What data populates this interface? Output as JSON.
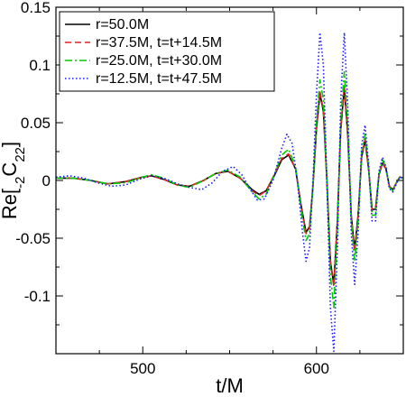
{
  "chart_data": {
    "type": "line",
    "xlabel": "t/M",
    "ylabel": {
      "main": "Re[",
      "pre_sub": "-2",
      "letter": "C",
      "post_sub": "22",
      "close": "]"
    },
    "xlim": [
      450,
      650
    ],
    "ylim": [
      -0.15,
      0.15
    ],
    "x_ticks": [
      500,
      600
    ],
    "x_tick_labels": [
      "500",
      "600"
    ],
    "y_ticks": [
      0.15,
      0.1,
      0.05,
      0,
      -0.05,
      -0.1
    ],
    "y_tick_labels": [
      "0.15",
      "0.1",
      "0.05",
      "0",
      "-0.05",
      "-0.1"
    ],
    "grid": false,
    "legend_position": "top-left",
    "series": [
      {
        "name": "r=50.0M",
        "color": "#000000",
        "dash": "solid",
        "points": [
          [
            450,
            0.002
          ],
          [
            460,
            0.002
          ],
          [
            470,
            0.0
          ],
          [
            480,
            -0.003
          ],
          [
            490,
            -0.001
          ],
          [
            500,
            0.003
          ],
          [
            505,
            0.004
          ],
          [
            512,
            0.001
          ],
          [
            520,
            -0.004
          ],
          [
            527,
            -0.005
          ],
          [
            535,
            0.0
          ],
          [
            542,
            0.006
          ],
          [
            549,
            0.008
          ],
          [
            556,
            0.002
          ],
          [
            563,
            -0.008
          ],
          [
            567,
            -0.012
          ],
          [
            571,
            -0.009
          ],
          [
            576,
            0.005
          ],
          [
            580,
            0.018
          ],
          [
            584,
            0.022
          ],
          [
            588,
            0.01
          ],
          [
            591,
            -0.02
          ],
          [
            594,
            -0.045
          ],
          [
            596,
            -0.04
          ],
          [
            598,
            -0.005
          ],
          [
            600,
            0.045
          ],
          [
            602,
            0.075
          ],
          [
            604,
            0.06
          ],
          [
            606,
            0.0
          ],
          [
            608,
            -0.07
          ],
          [
            610,
            -0.09
          ],
          [
            612,
            -0.035
          ],
          [
            614,
            0.045
          ],
          [
            616,
            0.08
          ],
          [
            618,
            0.04
          ],
          [
            620,
            -0.03
          ],
          [
            622,
            -0.06
          ],
          [
            624,
            -0.03
          ],
          [
            626,
            0.02
          ],
          [
            628,
            0.035
          ],
          [
            630,
            0.01
          ],
          [
            632,
            -0.025
          ],
          [
            634,
            -0.025
          ],
          [
            636,
            0.005
          ],
          [
            638,
            0.015
          ],
          [
            640,
            0.01
          ],
          [
            642,
            -0.005
          ],
          [
            644,
            -0.008
          ],
          [
            646,
            -0.002
          ],
          [
            648,
            0.003
          ],
          [
            650,
            0.002
          ]
        ]
      },
      {
        "name": "r=37.5M, t=t+14.5M",
        "color": "#e02020",
        "dash": "dashed",
        "points": [
          [
            450,
            0.002
          ],
          [
            460,
            0.002
          ],
          [
            470,
            0.0
          ],
          [
            480,
            -0.003
          ],
          [
            490,
            -0.001
          ],
          [
            500,
            0.003
          ],
          [
            505,
            0.004
          ],
          [
            512,
            0.001
          ],
          [
            520,
            -0.004
          ],
          [
            527,
            -0.005
          ],
          [
            535,
            0.0
          ],
          [
            542,
            0.006
          ],
          [
            549,
            0.008
          ],
          [
            556,
            0.002
          ],
          [
            563,
            -0.009
          ],
          [
            567,
            -0.013
          ],
          [
            571,
            -0.009
          ],
          [
            576,
            0.006
          ],
          [
            580,
            0.019
          ],
          [
            584,
            0.023
          ],
          [
            588,
            0.01
          ],
          [
            591,
            -0.021
          ],
          [
            594,
            -0.046
          ],
          [
            596,
            -0.041
          ],
          [
            598,
            -0.004
          ],
          [
            600,
            0.046
          ],
          [
            602,
            0.077
          ],
          [
            604,
            0.061
          ],
          [
            606,
            0.0
          ],
          [
            608,
            -0.071
          ],
          [
            610,
            -0.092
          ],
          [
            612,
            -0.036
          ],
          [
            614,
            0.046
          ],
          [
            616,
            0.082
          ],
          [
            618,
            0.041
          ],
          [
            620,
            -0.031
          ],
          [
            622,
            -0.062
          ],
          [
            624,
            -0.031
          ],
          [
            626,
            0.021
          ],
          [
            628,
            0.036
          ],
          [
            630,
            0.01
          ],
          [
            632,
            -0.026
          ],
          [
            634,
            -0.026
          ],
          [
            636,
            0.005
          ],
          [
            638,
            0.016
          ],
          [
            640,
            0.01
          ],
          [
            642,
            -0.005
          ],
          [
            644,
            -0.008
          ],
          [
            646,
            -0.002
          ],
          [
            648,
            0.003
          ],
          [
            650,
            0.002
          ]
        ]
      },
      {
        "name": "r=25.0M, t=t+30.0M",
        "color": "#00cc00",
        "dash": "dashdot",
        "points": [
          [
            450,
            0.002
          ],
          [
            460,
            0.002
          ],
          [
            470,
            0.0
          ],
          [
            480,
            -0.003
          ],
          [
            490,
            -0.002
          ],
          [
            500,
            0.003
          ],
          [
            505,
            0.005
          ],
          [
            512,
            0.002
          ],
          [
            520,
            -0.004
          ],
          [
            527,
            -0.006
          ],
          [
            535,
            0.0
          ],
          [
            542,
            0.006
          ],
          [
            549,
            0.009
          ],
          [
            556,
            0.003
          ],
          [
            563,
            -0.01
          ],
          [
            567,
            -0.016
          ],
          [
            571,
            -0.012
          ],
          [
            576,
            0.006
          ],
          [
            580,
            0.022
          ],
          [
            584,
            0.027
          ],
          [
            588,
            0.012
          ],
          [
            591,
            -0.024
          ],
          [
            594,
            -0.052
          ],
          [
            596,
            -0.046
          ],
          [
            598,
            -0.004
          ],
          [
            600,
            0.052
          ],
          [
            602,
            0.087
          ],
          [
            604,
            0.07
          ],
          [
            606,
            0.0
          ],
          [
            608,
            -0.082
          ],
          [
            610,
            -0.11
          ],
          [
            612,
            -0.042
          ],
          [
            614,
            0.052
          ],
          [
            616,
            0.094
          ],
          [
            618,
            0.048
          ],
          [
            620,
            -0.035
          ],
          [
            622,
            -0.07
          ],
          [
            624,
            -0.035
          ],
          [
            626,
            0.024
          ],
          [
            628,
            0.04
          ],
          [
            630,
            0.012
          ],
          [
            632,
            -0.03
          ],
          [
            634,
            -0.03
          ],
          [
            636,
            0.006
          ],
          [
            638,
            0.018
          ],
          [
            640,
            0.011
          ],
          [
            642,
            -0.006
          ],
          [
            644,
            -0.009
          ],
          [
            646,
            -0.002
          ],
          [
            648,
            0.003
          ],
          [
            650,
            0.002
          ]
        ]
      },
      {
        "name": "r=12.5M, t=t+47.5M",
        "color": "#1a1aff",
        "dash": "dotted",
        "points": [
          [
            450,
            0.003
          ],
          [
            458,
            0.004
          ],
          [
            466,
            0.002
          ],
          [
            474,
            -0.002
          ],
          [
            482,
            -0.005
          ],
          [
            490,
            -0.004
          ],
          [
            498,
            0.001
          ],
          [
            505,
            0.004
          ],
          [
            512,
            0.002
          ],
          [
            520,
            -0.003
          ],
          [
            527,
            -0.006
          ],
          [
            534,
            -0.008
          ],
          [
            540,
            -0.002
          ],
          [
            546,
            0.008
          ],
          [
            552,
            0.012
          ],
          [
            557,
            0.005
          ],
          [
            562,
            -0.008
          ],
          [
            566,
            -0.017
          ],
          [
            570,
            -0.016
          ],
          [
            575,
            0.0
          ],
          [
            580,
            0.028
          ],
          [
            583,
            0.04
          ],
          [
            586,
            0.032
          ],
          [
            589,
            0.0
          ],
          [
            592,
            -0.045
          ],
          [
            594,
            -0.07
          ],
          [
            596,
            -0.058
          ],
          [
            598,
            0.0
          ],
          [
            600,
            0.075
          ],
          [
            602,
            0.128
          ],
          [
            604,
            0.1
          ],
          [
            606,
            0.0
          ],
          [
            608,
            -0.11
          ],
          [
            610,
            -0.148
          ],
          [
            612,
            -0.06
          ],
          [
            614,
            0.07
          ],
          [
            616,
            0.128
          ],
          [
            618,
            0.065
          ],
          [
            620,
            -0.045
          ],
          [
            622,
            -0.09
          ],
          [
            624,
            -0.045
          ],
          [
            626,
            0.03
          ],
          [
            628,
            0.048
          ],
          [
            630,
            0.015
          ],
          [
            632,
            -0.035
          ],
          [
            634,
            -0.035
          ],
          [
            636,
            0.008
          ],
          [
            638,
            0.02
          ],
          [
            640,
            0.012
          ],
          [
            642,
            -0.007
          ],
          [
            644,
            -0.01
          ],
          [
            646,
            -0.003
          ],
          [
            648,
            0.003
          ],
          [
            650,
            0.002
          ]
        ]
      }
    ]
  }
}
